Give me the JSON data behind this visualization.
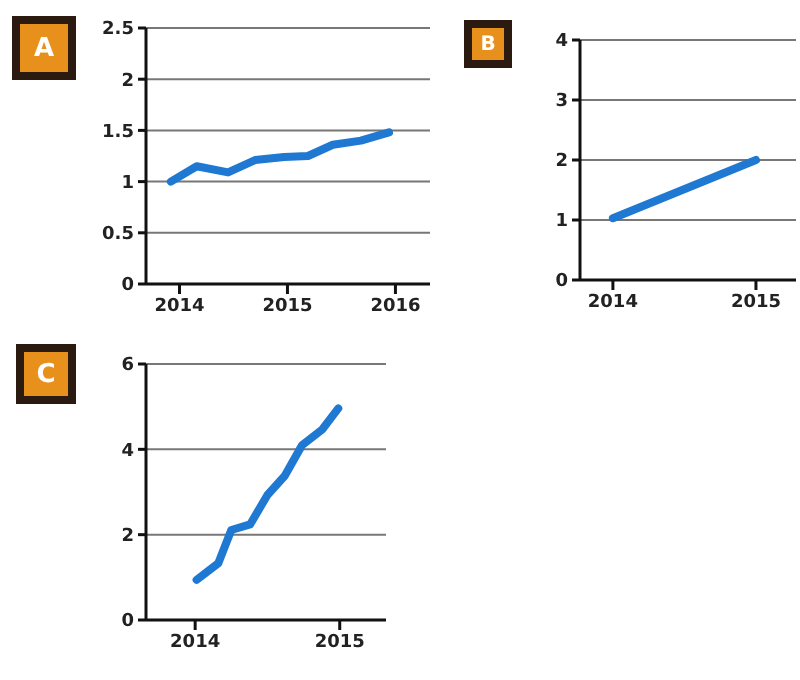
{
  "chart_data": [
    {
      "type": "line",
      "title": "A",
      "x": [
        2013.92,
        2014.16,
        2014.45,
        2014.7,
        2014.97,
        2015.19,
        2015.42,
        2015.68,
        2015.94
      ],
      "series": [
        {
          "color": "#1f78d1",
          "values": [
            1.0,
            1.15,
            1.09,
            1.21,
            1.24,
            1.25,
            1.36,
            1.4,
            1.48
          ]
        }
      ],
      "xlim": [
        2013.69,
        2016.32
      ],
      "ylim": [
        0,
        2.5
      ],
      "xticks": [
        2014,
        2015,
        2016
      ],
      "yticks": [
        0,
        0.5,
        1,
        1.5,
        2,
        2.5
      ],
      "grid": "y",
      "marker": "none"
    },
    {
      "type": "line",
      "title": "B",
      "x": [
        2014,
        2015
      ],
      "series": [
        {
          "color": "#1f78d1",
          "values": [
            1.03,
            2.0
          ]
        }
      ],
      "xlim": [
        2013.77,
        2015.28
      ],
      "ylim": [
        0,
        4
      ],
      "xticks": [
        2014,
        2015
      ],
      "yticks": [
        0,
        1,
        2,
        3,
        4
      ],
      "grid": "y",
      "marker": "none"
    },
    {
      "type": "line",
      "title": "C",
      "x": [
        2014.01,
        2014.16,
        2014.25,
        2014.38,
        2014.5,
        2014.62,
        2014.74,
        2014.88,
        2014.99
      ],
      "series": [
        {
          "color": "#1f78d1",
          "values": [
            0.94,
            1.33,
            2.11,
            2.24,
            2.93,
            3.38,
            4.1,
            4.47,
            4.96
          ]
        }
      ],
      "xlim": [
        2013.66,
        2015.32
      ],
      "ylim": [
        0,
        6
      ],
      "xticks": [
        2014,
        2015
      ],
      "yticks": [
        0,
        2,
        4,
        6
      ],
      "grid": "y",
      "marker": "none"
    }
  ]
}
